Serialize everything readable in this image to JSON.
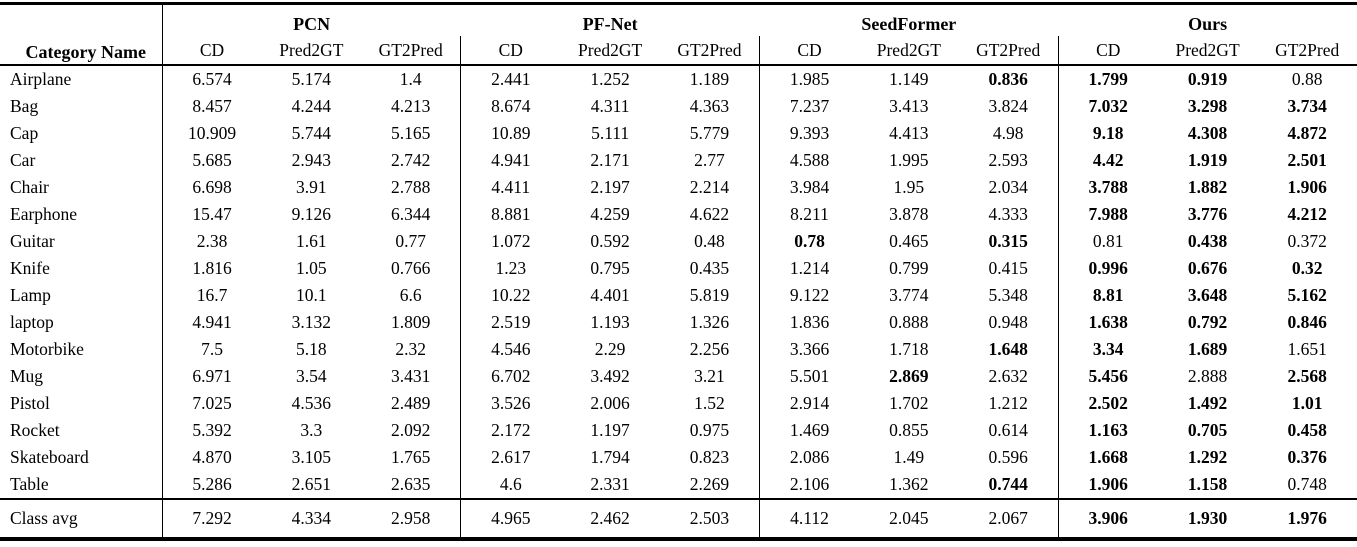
{
  "table": {
    "header": {
      "category": "Category Name",
      "groups": [
        {
          "name": "PCN"
        },
        {
          "name": "PF-Net"
        },
        {
          "name": "SeedFormer"
        },
        {
          "name": "Ours"
        }
      ],
      "sub_headers": [
        "CD",
        "Pred2GT",
        "GT2Pred"
      ]
    },
    "column_order": [
      "PCN CD",
      "PCN Pred2GT",
      "PCN GT2Pred",
      "PF-Net CD",
      "PF-Net Pred2GT",
      "PF-Net GT2Pred",
      "SeedFormer CD",
      "SeedFormer Pred2GT",
      "SeedFormer GT2Pred",
      "Ours CD",
      "Ours Pred2GT",
      "Ours GT2Pred"
    ],
    "rows": [
      {
        "category": "Airplane",
        "values": [
          "6.574",
          "5.174",
          "1.4",
          "2.441",
          "1.252",
          "1.189",
          "1.985",
          "1.149",
          "0.836",
          "1.799",
          "0.919",
          "0.88"
        ],
        "bold": [
          8,
          9,
          10
        ]
      },
      {
        "category": "Bag",
        "values": [
          "8.457",
          "4.244",
          "4.213",
          "8.674",
          "4.311",
          "4.363",
          "7.237",
          "3.413",
          "3.824",
          "7.032",
          "3.298",
          "3.734"
        ],
        "bold": [
          9,
          10,
          11
        ]
      },
      {
        "category": "Cap",
        "values": [
          "10.909",
          "5.744",
          "5.165",
          "10.89",
          "5.111",
          "5.779",
          "9.393",
          "4.413",
          "4.98",
          "9.18",
          "4.308",
          "4.872"
        ],
        "bold": [
          9,
          10,
          11
        ]
      },
      {
        "category": "Car",
        "values": [
          "5.685",
          "2.943",
          "2.742",
          "4.941",
          "2.171",
          "2.77",
          "4.588",
          "1.995",
          "2.593",
          "4.42",
          "1.919",
          "2.501"
        ],
        "bold": [
          9,
          10,
          11
        ]
      },
      {
        "category": "Chair",
        "values": [
          "6.698",
          "3.91",
          "2.788",
          "4.411",
          "2.197",
          "2.214",
          "3.984",
          "1.95",
          "2.034",
          "3.788",
          "1.882",
          "1.906"
        ],
        "bold": [
          9,
          10,
          11
        ]
      },
      {
        "category": "Earphone",
        "values": [
          "15.47",
          "9.126",
          "6.344",
          "8.881",
          "4.259",
          "4.622",
          "8.211",
          "3.878",
          "4.333",
          "7.988",
          "3.776",
          "4.212"
        ],
        "bold": [
          9,
          10,
          11
        ]
      },
      {
        "category": "Guitar",
        "values": [
          "2.38",
          "1.61",
          "0.77",
          "1.072",
          "0.592",
          "0.48",
          "0.78",
          "0.465",
          "0.315",
          "0.81",
          "0.438",
          "0.372"
        ],
        "bold": [
          6,
          8,
          10
        ]
      },
      {
        "category": "Knife",
        "values": [
          "1.816",
          "1.05",
          "0.766",
          "1.23",
          "0.795",
          "0.435",
          "1.214",
          "0.799",
          "0.415",
          "0.996",
          "0.676",
          "0.32"
        ],
        "bold": [
          9,
          10,
          11
        ]
      },
      {
        "category": "Lamp",
        "values": [
          "16.7",
          "10.1",
          "6.6",
          "10.22",
          "4.401",
          "5.819",
          "9.122",
          "3.774",
          "5.348",
          "8.81",
          "3.648",
          "5.162"
        ],
        "bold": [
          9,
          10,
          11
        ]
      },
      {
        "category": "laptop",
        "values": [
          "4.941",
          "3.132",
          "1.809",
          "2.519",
          "1.193",
          "1.326",
          "1.836",
          "0.888",
          "0.948",
          "1.638",
          "0.792",
          "0.846"
        ],
        "bold": [
          9,
          10,
          11
        ]
      },
      {
        "category": "Motorbike",
        "values": [
          "7.5",
          "5.18",
          "2.32",
          "4.546",
          "2.29",
          "2.256",
          "3.366",
          "1.718",
          "1.648",
          "3.34",
          "1.689",
          "1.651"
        ],
        "bold": [
          8,
          9,
          10
        ]
      },
      {
        "category": "Mug",
        "values": [
          "6.971",
          "3.54",
          "3.431",
          "6.702",
          "3.492",
          "3.21",
          "5.501",
          "2.869",
          "2.632",
          "5.456",
          "2.888",
          "2.568"
        ],
        "bold": [
          7,
          9,
          11
        ]
      },
      {
        "category": "Pistol",
        "values": [
          "7.025",
          "4.536",
          "2.489",
          "3.526",
          "2.006",
          "1.52",
          "2.914",
          "1.702",
          "1.212",
          "2.502",
          "1.492",
          "1.01"
        ],
        "bold": [
          9,
          10,
          11
        ]
      },
      {
        "category": "Rocket",
        "values": [
          "5.392",
          "3.3",
          "2.092",
          "2.172",
          "1.197",
          "0.975",
          "1.469",
          "0.855",
          "0.614",
          "1.163",
          "0.705",
          "0.458"
        ],
        "bold": [
          9,
          10,
          11
        ]
      },
      {
        "category": "Skateboard",
        "values": [
          "4.870",
          "3.105",
          "1.765",
          "2.617",
          "1.794",
          "0.823",
          "2.086",
          "1.49",
          "0.596",
          "1.668",
          "1.292",
          "0.376"
        ],
        "bold": [
          9,
          10,
          11
        ]
      },
      {
        "category": "Table",
        "values": [
          "5.286",
          "2.651",
          "2.635",
          "4.6",
          "2.331",
          "2.269",
          "2.106",
          "1.362",
          "0.744",
          "1.906",
          "1.158",
          "0.748"
        ],
        "bold": [
          8,
          9,
          10
        ]
      }
    ],
    "footer": {
      "category": "Class avg",
      "values": [
        "7.292",
        "4.334",
        "2.958",
        "4.965",
        "2.462",
        "2.503",
        "4.112",
        "2.045",
        "2.067",
        "3.906",
        "1.930",
        "1.976"
      ],
      "bold": [
        9,
        10,
        11
      ]
    }
  },
  "colors": {
    "text": "#000000",
    "background": "#ffffff",
    "rule": "#000000"
  }
}
